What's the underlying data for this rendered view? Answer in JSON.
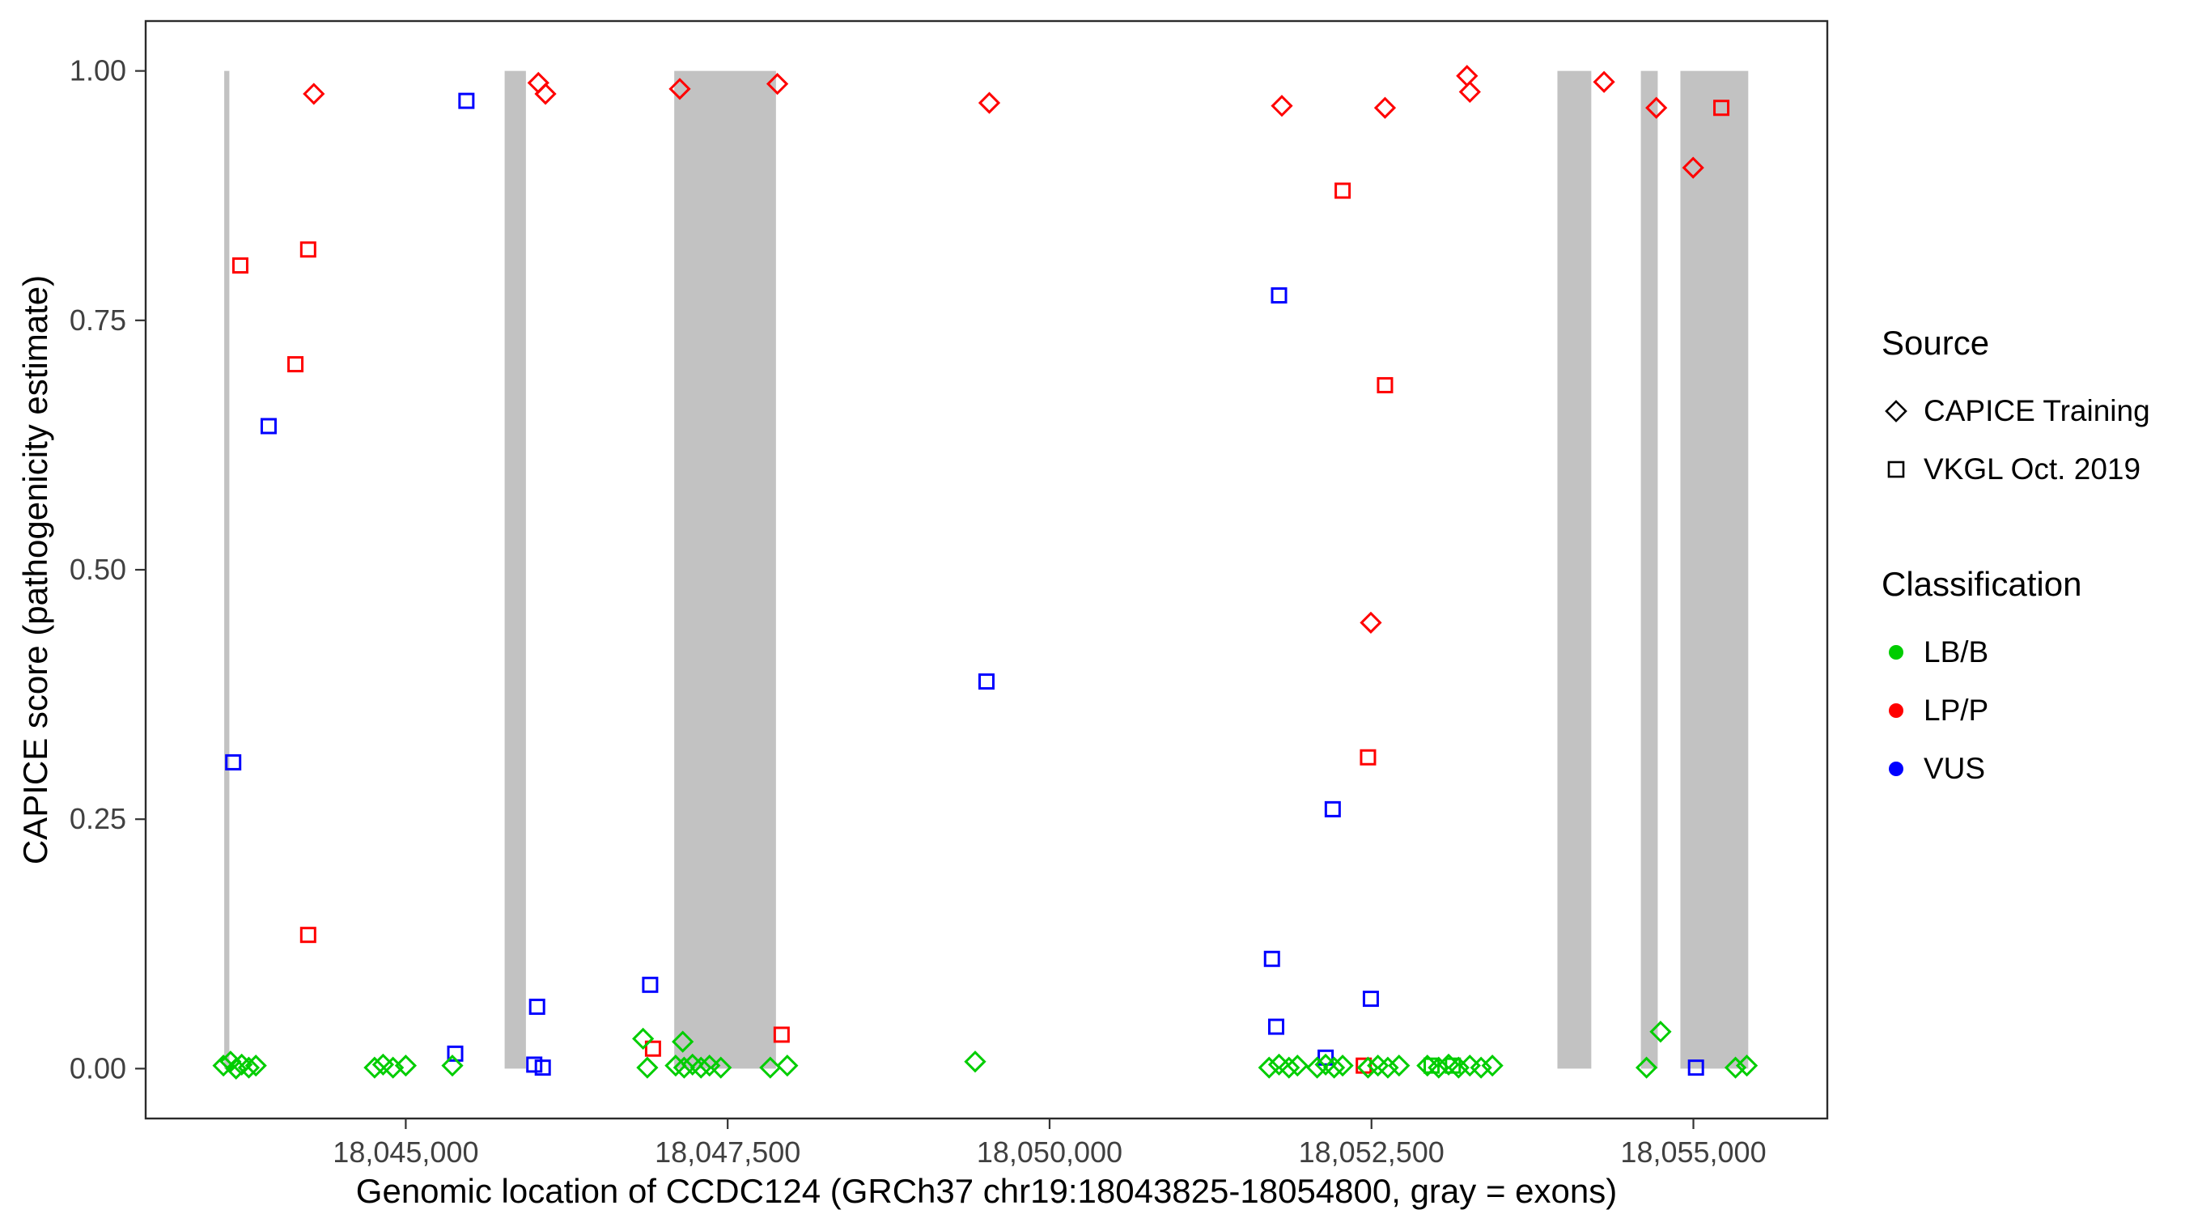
{
  "chart_data": {
    "type": "scatter",
    "title": "",
    "xlabel": "Genomic location of CCDC124 (GRCh37 chr19:18043825-18054800, gray = exons)",
    "ylabel": "CAPICE score (pathogenicity estimate)",
    "xlim": [
      18042980,
      18056040
    ],
    "ylim": [
      -0.05,
      1.05
    ],
    "grid": false,
    "xticks": [
      {
        "value": 18045000,
        "label": "18,045,000"
      },
      {
        "value": 18047500,
        "label": "18,047,500"
      },
      {
        "value": 18050000,
        "label": "18,050,000"
      },
      {
        "value": 18052500,
        "label": "18,052,500"
      },
      {
        "value": 18055000,
        "label": "18,055,000"
      }
    ],
    "yticks": [
      {
        "value": 0.0,
        "label": "0.00"
      },
      {
        "value": 0.25,
        "label": "0.25"
      },
      {
        "value": 0.5,
        "label": "0.50"
      },
      {
        "value": 0.75,
        "label": "0.75"
      },
      {
        "value": 1.0,
        "label": "1.00"
      }
    ],
    "exon_color": "#C2C2C2",
    "exons": [
      [
        18043590,
        18043630
      ],
      [
        18045768,
        18045933
      ],
      [
        18047085,
        18047875
      ],
      [
        18053944,
        18054207
      ],
      [
        18054592,
        18054723
      ],
      [
        18054899,
        18055426
      ]
    ],
    "classification_colors": {
      "LB/B": "#00CD00",
      "LP/P": "#FF0000",
      "VUS": "#0000FF"
    },
    "marker_shapes": {
      "CAPICE Training": "diamond",
      "VKGL Oct. 2019": "square"
    },
    "series": [
      {
        "name": "CAPICE Training LP/P",
        "source": "CAPICE Training",
        "classification": "LP/P",
        "marker": "diamond",
        "points": [
          [
            18044286,
            0.977
          ],
          [
            18046030,
            0.988
          ],
          [
            18046085,
            0.977
          ],
          [
            18047128,
            0.982
          ],
          [
            18047886,
            0.987
          ],
          [
            18049532,
            0.968
          ],
          [
            18051804,
            0.965
          ],
          [
            18052605,
            0.963
          ],
          [
            18053242,
            0.995
          ],
          [
            18053264,
            0.979
          ],
          [
            18054306,
            0.989
          ],
          [
            18054712,
            0.963
          ],
          [
            18054998,
            0.903
          ],
          [
            18052495,
            0.447
          ]
        ]
      },
      {
        "name": "VKGL LP/P",
        "source": "VKGL Oct. 2019",
        "classification": "LP/P",
        "marker": "square",
        "points": [
          [
            18043715,
            0.805
          ],
          [
            18044242,
            0.821
          ],
          [
            18044143,
            0.706
          ],
          [
            18044242,
            0.134
          ],
          [
            18046920,
            0.02
          ],
          [
            18047919,
            0.034
          ],
          [
            18052276,
            0.88
          ],
          [
            18052605,
            0.685
          ],
          [
            18052473,
            0.312
          ],
          [
            18055217,
            0.963
          ],
          [
            18052440,
            0.003
          ]
        ]
      },
      {
        "name": "VKGL VUS",
        "source": "VKGL Oct. 2019",
        "classification": "VUS",
        "marker": "square",
        "points": [
          [
            18043660,
            0.307
          ],
          [
            18043935,
            0.644
          ],
          [
            18045471,
            0.97
          ],
          [
            18046020,
            0.062
          ],
          [
            18046898,
            0.084
          ],
          [
            18045384,
            0.015
          ],
          [
            18045998,
            0.004
          ],
          [
            18046064,
            0.001
          ],
          [
            18049510,
            0.388
          ],
          [
            18051782,
            0.775
          ],
          [
            18051727,
            0.11
          ],
          [
            18051760,
            0.042
          ],
          [
            18052199,
            0.26
          ],
          [
            18052144,
            0.011
          ],
          [
            18052495,
            0.07
          ],
          [
            18055020,
            0.001
          ]
        ]
      },
      {
        "name": "CAPICE Training LB/B",
        "source": "CAPICE Training",
        "classification": "LB/B",
        "marker": "diamond",
        "points": [
          [
            18043584,
            0.003
          ],
          [
            18043639,
            0.007
          ],
          [
            18043682,
            0.0
          ],
          [
            18043726,
            0.004
          ],
          [
            18043781,
            0.001
          ],
          [
            18043836,
            0.003
          ],
          [
            18044758,
            0.001
          ],
          [
            18044824,
            0.004
          ],
          [
            18044901,
            0.001
          ],
          [
            18045000,
            0.003
          ],
          [
            18045362,
            0.003
          ],
          [
            18046843,
            0.03
          ],
          [
            18047151,
            0.027
          ],
          [
            18046876,
            0.001
          ],
          [
            18047096,
            0.003
          ],
          [
            18047162,
            0.001
          ],
          [
            18047227,
            0.004
          ],
          [
            18047293,
            0.001
          ],
          [
            18047359,
            0.003
          ],
          [
            18047447,
            0.001
          ],
          [
            18047831,
            0.001
          ],
          [
            18047963,
            0.003
          ],
          [
            18049422,
            0.007
          ],
          [
            18051705,
            0.001
          ],
          [
            18051782,
            0.004
          ],
          [
            18051859,
            0.001
          ],
          [
            18051925,
            0.003
          ],
          [
            18052078,
            0.001
          ],
          [
            18052144,
            0.004
          ],
          [
            18052210,
            0.001
          ],
          [
            18052276,
            0.003
          ],
          [
            18052473,
            0.001
          ],
          [
            18052550,
            0.003
          ],
          [
            18052627,
            0.001
          ],
          [
            18052714,
            0.003
          ],
          [
            18052934,
            0.003
          ],
          [
            18053022,
            0.001
          ],
          [
            18053099,
            0.004
          ],
          [
            18053176,
            0.001
          ],
          [
            18053264,
            0.003
          ],
          [
            18053351,
            0.001
          ],
          [
            18053439,
            0.003
          ],
          [
            18054636,
            0.001
          ],
          [
            18054745,
            0.037
          ],
          [
            18055327,
            0.001
          ],
          [
            18055415,
            0.003
          ]
        ]
      },
      {
        "name": "VKGL LB/B",
        "source": "VKGL Oct. 2019",
        "classification": "LB/B",
        "marker": "square",
        "points": [
          [
            18052967,
            0.003
          ],
          [
            18053132,
            0.003
          ]
        ]
      }
    ]
  },
  "legend": {
    "source": {
      "title": "Source",
      "items": [
        {
          "label": "CAPICE Training",
          "marker": "diamond"
        },
        {
          "label": "VKGL Oct. 2019",
          "marker": "square"
        }
      ]
    },
    "classification": {
      "title": "Classification",
      "items": [
        {
          "label": "LB/B",
          "color": "#00CD00"
        },
        {
          "label": "LP/P",
          "color": "#FF0000"
        },
        {
          "label": "VUS",
          "color": "#0000FF"
        }
      ]
    }
  }
}
